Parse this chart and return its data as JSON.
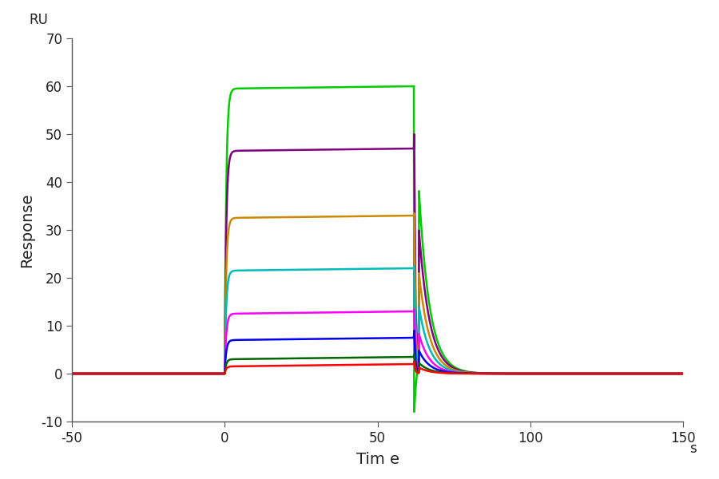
{
  "curves": [
    {
      "color": "#00cc00",
      "plateau": 59.5,
      "rise_tau": 0.5,
      "decay_tau": 3.5,
      "spike_y": -8.0,
      "has_spike": true
    },
    {
      "color": "#800080",
      "plateau": 46.5,
      "rise_tau": 0.5,
      "decay_tau": 3.5,
      "spike_y": 50.0,
      "has_spike": true
    },
    {
      "color": "#CC8800",
      "plateau": 32.5,
      "rise_tau": 0.5,
      "decay_tau": 3.5,
      "spike_y": 33.5,
      "has_spike": true
    },
    {
      "color": "#00BBBB",
      "plateau": 21.5,
      "rise_tau": 0.5,
      "decay_tau": 3.5,
      "spike_y": 22.5,
      "has_spike": true
    },
    {
      "color": "#FF00FF",
      "plateau": 12.5,
      "rise_tau": 0.5,
      "decay_tau": 3.5,
      "spike_y": 13.5,
      "has_spike": true
    },
    {
      "color": "#0000EE",
      "plateau": 7.0,
      "rise_tau": 0.5,
      "decay_tau": 3.5,
      "spike_y": 9.0,
      "has_spike": true
    },
    {
      "color": "#006600",
      "plateau": 3.0,
      "rise_tau": 0.5,
      "decay_tau": 3.5,
      "spike_y": 4.0,
      "has_spike": true
    },
    {
      "color": "#FF0000",
      "plateau": 1.5,
      "rise_tau": 0.5,
      "decay_tau": 3.5,
      "spike_y": 2.5,
      "has_spike": true
    }
  ],
  "t_start": -50,
  "t_end": 150,
  "t_assoc_start": 0,
  "t_assoc_end": 62,
  "t_dissoc_end": 150,
  "baseline": 0.0,
  "xlim": [
    -50,
    150
  ],
  "ylim": [
    -10,
    70
  ],
  "xticks": [
    -50,
    0,
    50,
    100,
    150
  ],
  "yticks": [
    -10,
    0,
    10,
    20,
    30,
    40,
    50,
    60,
    70
  ],
  "xlabel": "Tim e",
  "xlabel_unit": "s",
  "ylabel": "Response",
  "ylabel_top": "RU",
  "background_color": "#ffffff",
  "linewidth": 1.8,
  "figsize": [
    9.0,
    6.0
  ],
  "dpi": 100
}
